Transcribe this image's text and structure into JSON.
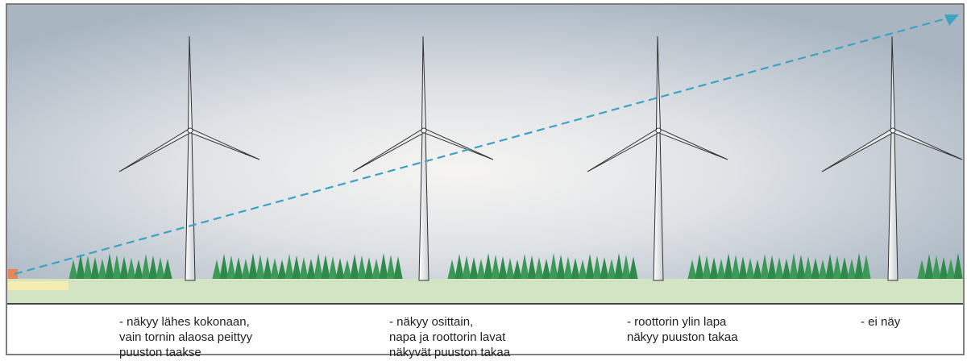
{
  "captions": [
    {
      "lines": [
        "- näkyy lähes kokonaan,",
        "vain tornin alaosa peittyy",
        "puuston taakse"
      ]
    },
    {
      "lines": [
        "- näkyy osittain,",
        "napa ja roottorin lavat",
        "näkyvät puuston takaa"
      ]
    },
    {
      "lines": [
        "- roottorin ylin lapa",
        "näkyy puuston takaa"
      ]
    },
    {
      "lines": [
        "- ei näy"
      ]
    }
  ]
}
